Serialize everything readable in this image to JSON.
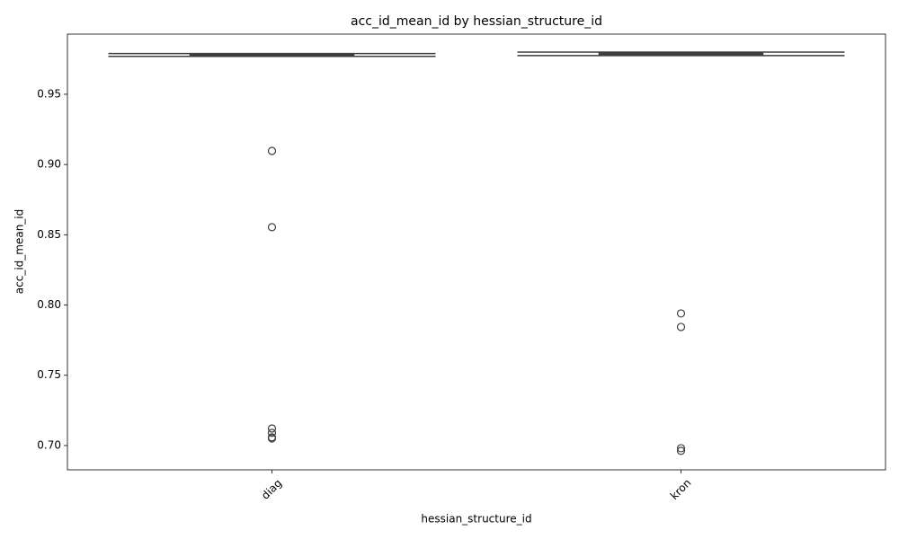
{
  "chart_data": {
    "type": "box",
    "title": "acc_id_mean_id by hessian_structure_id",
    "x_label": "hessian_structure_id",
    "y_label": "acc_id_mean_id",
    "categories": [
      "diag",
      "kron"
    ],
    "boxes": [
      {
        "whislo": 0.977,
        "q1": 0.9775,
        "med": 0.978,
        "q3": 0.9788,
        "whishi": 0.979,
        "fliers": [
          0.9097,
          0.8554,
          0.7121,
          0.709,
          0.7058,
          0.7051
        ]
      },
      {
        "whislo": 0.9775,
        "q1": 0.9781,
        "med": 0.9788,
        "q3": 0.9794,
        "whishi": 0.98,
        "fliers": [
          0.794,
          0.7844,
          0.6981,
          0.6962
        ]
      }
    ],
    "color": "#3f3f3f",
    "ylim": [
      0.6827,
      0.9928
    ],
    "yticks": [
      {
        "value": 0.7,
        "label": "0.70"
      },
      0.75,
      {
        "value": 0.8,
        "label": "0.80"
      },
      0.85,
      {
        "value": 0.9,
        "label": "0.90"
      },
      0.95
    ]
  }
}
